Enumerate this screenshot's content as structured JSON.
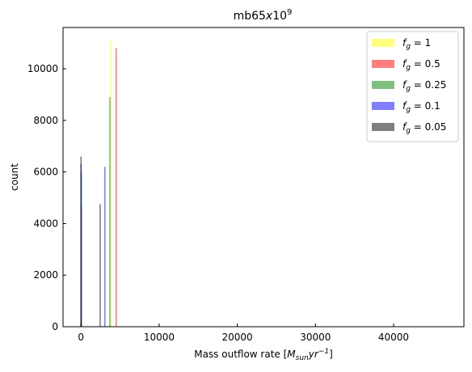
{
  "chart_data": {
    "type": "bar",
    "title": "mb65x10^9",
    "title_parts": {
      "base": "mb65",
      "x": "x",
      "ten": "10",
      "exp": "9"
    },
    "xlabel": "Mass outflow rate [M_sun yr^-1]",
    "xlabel_parts": {
      "prefix": "Mass outflow rate [",
      "M": "M",
      "sub": "sun",
      "yr": "yr",
      "sup": "−1",
      "suffix": "]"
    },
    "ylabel": "count",
    "xlim": [
      -2300,
      49000
    ],
    "ylim": [
      0,
      11600
    ],
    "x_ticks": [
      0,
      10000,
      20000,
      30000,
      40000
    ],
    "y_ticks": [
      0,
      2000,
      4000,
      6000,
      8000,
      10000
    ],
    "legend_position": "top-right",
    "grid": false,
    "series": [
      {
        "name": "f_g = 1",
        "label_text": " = 1",
        "color": "#ffff00",
        "opacity": 0.5,
        "bars": [
          {
            "x": 3800,
            "value": 11100
          },
          {
            "x": 20,
            "value": 4400
          }
        ]
      },
      {
        "name": "f_g = 0.5",
        "label_text": " = 0.5",
        "color": "#ff0000",
        "opacity": 0.5,
        "bars": [
          {
            "x": 4500,
            "value": 10800
          },
          {
            "x": 30,
            "value": 4700
          }
        ]
      },
      {
        "name": "f_g = 0.25",
        "label_text": " = 0.25",
        "color": "#008000",
        "opacity": 0.5,
        "bars": [
          {
            "x": 3700,
            "value": 8900
          },
          {
            "x": 40,
            "value": 6000
          }
        ]
      },
      {
        "name": "f_g = 0.1",
        "label_text": " = 0.1",
        "color": "#0000ff",
        "opacity": 0.5,
        "bars": [
          {
            "x": 3050,
            "value": 6200
          },
          {
            "x": 10,
            "value": 6300
          }
        ]
      },
      {
        "name": "f_g = 0.05",
        "label_text": " = 0.05",
        "color": "#000000",
        "opacity": 0.5,
        "bars": [
          {
            "x": 2450,
            "value": 4750
          },
          {
            "x": 0,
            "value": 6600
          }
        ]
      }
    ]
  }
}
